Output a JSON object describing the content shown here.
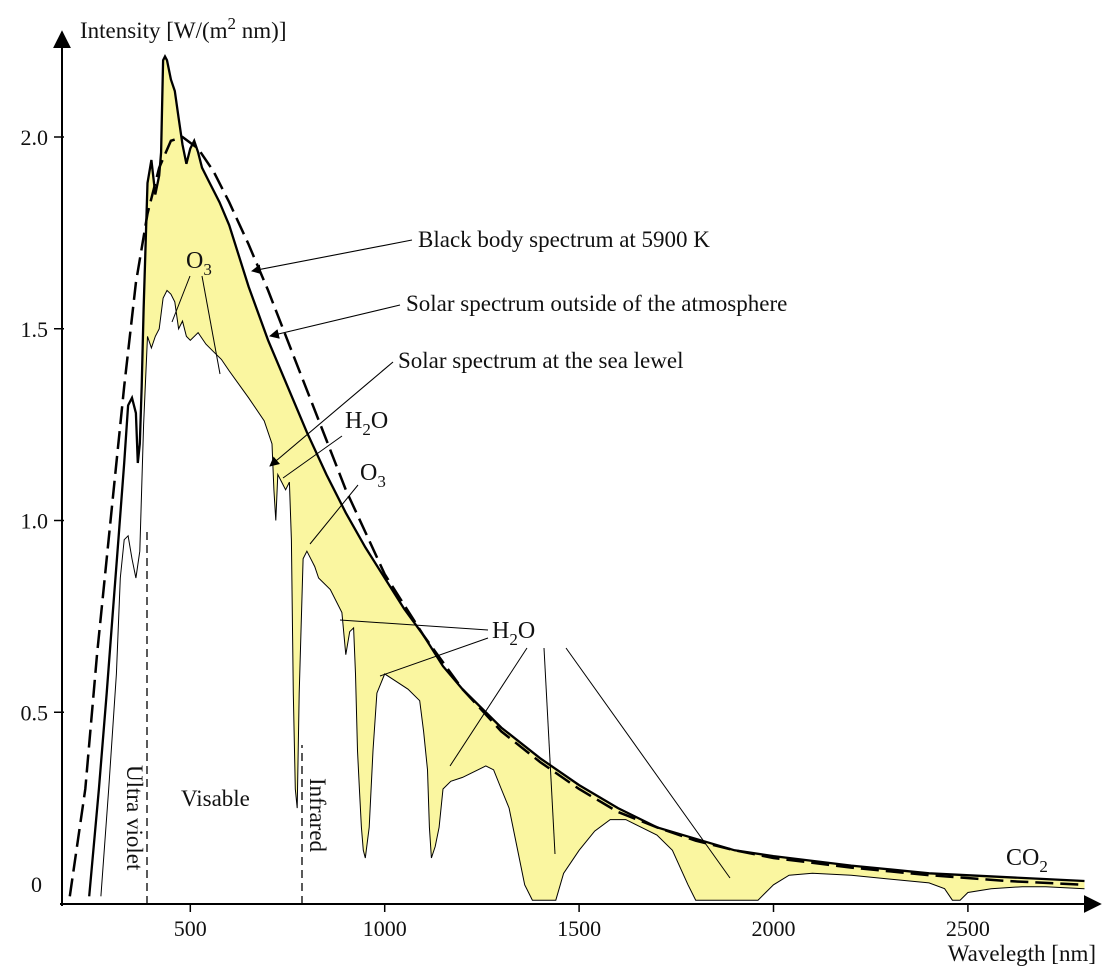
{
  "chart_data": {
    "type": "line",
    "ylabel_main": "Intensity [W/(m",
    "ylabel_sup": "2",
    "ylabel_rest": " nm)]",
    "xlabel": "Wavelegth [nm]",
    "xlim": [
      170,
      2800
    ],
    "ylim": [
      0,
      2.2
    ],
    "x_ticks": [
      500,
      1000,
      1500,
      2000,
      2500
    ],
    "y_ticks": [
      0,
      0.5,
      1.0,
      1.5,
      2.0
    ],
    "x_tick_labels": [
      "500",
      "1000",
      "1500",
      "2000",
      "2500"
    ],
    "y_tick_labels": [
      "0",
      "0.5",
      "1.0",
      "1.5",
      "2.0"
    ],
    "region_labels": {
      "uv": "Ultra violet",
      "visible": "Visable",
      "infrared": "Infrared"
    },
    "annotations": {
      "blackbody": "Black body spectrum at 5900 K",
      "outside": "Solar spectrum outside of the atmosphere",
      "sealevel": "Solar spectrum at the sea lewel",
      "o3_main": "O",
      "o3_sub": "3",
      "h2o_h": "H",
      "h2o_sub": "2",
      "h2o_o": "O",
      "co2_main": "CO",
      "co2_sub": "2"
    },
    "colors": {
      "fill": "#faf6a0",
      "line": "#000000"
    },
    "series": [
      {
        "name": "Black body spectrum at 5900 K",
        "style": "dashed",
        "points": [
          [
            190,
            0.02
          ],
          [
            230,
            0.3
          ],
          [
            260,
            0.65
          ],
          [
            300,
            1.05
          ],
          [
            330,
            1.35
          ],
          [
            360,
            1.62
          ],
          [
            390,
            1.8
          ],
          [
            420,
            1.92
          ],
          [
            450,
            1.99
          ],
          [
            480,
            2.0
          ],
          [
            520,
            1.97
          ],
          [
            560,
            1.91
          ],
          [
            600,
            1.83
          ],
          [
            650,
            1.72
          ],
          [
            700,
            1.6
          ],
          [
            750,
            1.47
          ],
          [
            800,
            1.34
          ],
          [
            850,
            1.21
          ],
          [
            900,
            1.08
          ],
          [
            950,
            0.97
          ],
          [
            1000,
            0.86
          ],
          [
            1100,
            0.7
          ],
          [
            1200,
            0.56
          ],
          [
            1300,
            0.45
          ],
          [
            1400,
            0.37
          ],
          [
            1500,
            0.3
          ],
          [
            1600,
            0.24
          ],
          [
            1700,
            0.2
          ],
          [
            1800,
            0.165
          ],
          [
            1900,
            0.14
          ],
          [
            2000,
            0.12
          ],
          [
            2200,
            0.095
          ],
          [
            2400,
            0.075
          ],
          [
            2600,
            0.06
          ],
          [
            2800,
            0.05
          ]
        ]
      },
      {
        "name": "Solar spectrum outside of the atmosphere",
        "style": "solid",
        "points": [
          [
            240,
            0.02
          ],
          [
            265,
            0.3
          ],
          [
            285,
            0.55
          ],
          [
            300,
            0.75
          ],
          [
            315,
            0.95
          ],
          [
            330,
            1.15
          ],
          [
            340,
            1.3
          ],
          [
            350,
            1.32
          ],
          [
            360,
            1.28
          ],
          [
            365,
            1.15
          ],
          [
            370,
            1.2
          ],
          [
            375,
            1.35
          ],
          [
            380,
            1.55
          ],
          [
            390,
            1.88
          ],
          [
            400,
            1.94
          ],
          [
            410,
            1.85
          ],
          [
            420,
            1.9
          ],
          [
            425,
            1.96
          ],
          [
            430,
            2.2
          ],
          [
            435,
            2.21
          ],
          [
            440,
            2.2
          ],
          [
            450,
            2.15
          ],
          [
            460,
            2.12
          ],
          [
            470,
            2.05
          ],
          [
            480,
            1.98
          ],
          [
            490,
            1.93
          ],
          [
            500,
            1.97
          ],
          [
            510,
            1.99
          ],
          [
            520,
            1.96
          ],
          [
            530,
            1.92
          ],
          [
            550,
            1.88
          ],
          [
            575,
            1.83
          ],
          [
            600,
            1.77
          ],
          [
            650,
            1.61
          ],
          [
            700,
            1.47
          ],
          [
            750,
            1.35
          ],
          [
            800,
            1.23
          ],
          [
            850,
            1.12
          ],
          [
            900,
            1.02
          ],
          [
            950,
            0.93
          ],
          [
            1000,
            0.85
          ],
          [
            1050,
            0.77
          ],
          [
            1100,
            0.7
          ],
          [
            1150,
            0.62
          ],
          [
            1200,
            0.56
          ],
          [
            1300,
            0.46
          ],
          [
            1400,
            0.38
          ],
          [
            1500,
            0.31
          ],
          [
            1600,
            0.25
          ],
          [
            1700,
            0.2
          ],
          [
            1800,
            0.17
          ],
          [
            1900,
            0.14
          ],
          [
            2000,
            0.125
          ],
          [
            2200,
            0.1
          ],
          [
            2400,
            0.08
          ],
          [
            2600,
            0.07
          ],
          [
            2800,
            0.06
          ]
        ]
      },
      {
        "name": "Solar spectrum at the sea lewel",
        "style": "fill",
        "points": [
          [
            270,
            0.02
          ],
          [
            290,
            0.3
          ],
          [
            310,
            0.6
          ],
          [
            320,
            0.85
          ],
          [
            330,
            0.95
          ],
          [
            340,
            0.96
          ],
          [
            350,
            0.9
          ],
          [
            360,
            0.85
          ],
          [
            370,
            0.92
          ],
          [
            380,
            1.25
          ],
          [
            390,
            1.48
          ],
          [
            400,
            1.45
          ],
          [
            410,
            1.48
          ],
          [
            420,
            1.5
          ],
          [
            430,
            1.58
          ],
          [
            440,
            1.6
          ],
          [
            450,
            1.59
          ],
          [
            460,
            1.57
          ],
          [
            470,
            1.5
          ],
          [
            480,
            1.52
          ],
          [
            490,
            1.48
          ],
          [
            500,
            1.47
          ],
          [
            520,
            1.49
          ],
          [
            540,
            1.46
          ],
          [
            560,
            1.44
          ],
          [
            580,
            1.42
          ],
          [
            600,
            1.39
          ],
          [
            650,
            1.32
          ],
          [
            690,
            1.26
          ],
          [
            710,
            1.2
          ],
          [
            715,
            1.08
          ],
          [
            720,
            1.0
          ],
          [
            725,
            1.12
          ],
          [
            735,
            1.1
          ],
          [
            745,
            1.08
          ],
          [
            755,
            1.1
          ],
          [
            760,
            0.95
          ],
          [
            765,
            0.55
          ],
          [
            770,
            0.3
          ],
          [
            775,
            0.25
          ],
          [
            780,
            0.55
          ],
          [
            790,
            0.9
          ],
          [
            800,
            0.92
          ],
          [
            810,
            0.9
          ],
          [
            820,
            0.88
          ],
          [
            830,
            0.85
          ],
          [
            860,
            0.82
          ],
          [
            890,
            0.76
          ],
          [
            900,
            0.65
          ],
          [
            910,
            0.71
          ],
          [
            920,
            0.72
          ],
          [
            925,
            0.6
          ],
          [
            930,
            0.4
          ],
          [
            935,
            0.3
          ],
          [
            940,
            0.2
          ],
          [
            945,
            0.14
          ],
          [
            950,
            0.12
          ],
          [
            960,
            0.2
          ],
          [
            970,
            0.4
          ],
          [
            980,
            0.55
          ],
          [
            1000,
            0.6
          ],
          [
            1030,
            0.58
          ],
          [
            1060,
            0.56
          ],
          [
            1090,
            0.53
          ],
          [
            1100,
            0.45
          ],
          [
            1110,
            0.35
          ],
          [
            1115,
            0.2
          ],
          [
            1120,
            0.12
          ],
          [
            1130,
            0.15
          ],
          [
            1140,
            0.2
          ],
          [
            1150,
            0.3
          ],
          [
            1170,
            0.32
          ],
          [
            1200,
            0.33
          ],
          [
            1240,
            0.35
          ],
          [
            1260,
            0.36
          ],
          [
            1280,
            0.35
          ],
          [
            1300,
            0.3
          ],
          [
            1320,
            0.25
          ],
          [
            1340,
            0.15
          ],
          [
            1360,
            0.05
          ],
          [
            1380,
            0.01
          ],
          [
            1440,
            0.01
          ],
          [
            1460,
            0.08
          ],
          [
            1500,
            0.14
          ],
          [
            1540,
            0.19
          ],
          [
            1580,
            0.22
          ],
          [
            1620,
            0.22
          ],
          [
            1660,
            0.2
          ],
          [
            1700,
            0.18
          ],
          [
            1740,
            0.14
          ],
          [
            1780,
            0.05
          ],
          [
            1800,
            0.01
          ],
          [
            1960,
            0.01
          ],
          [
            1980,
            0.03
          ],
          [
            2000,
            0.05
          ],
          [
            2040,
            0.075
          ],
          [
            2100,
            0.08
          ],
          [
            2200,
            0.075
          ],
          [
            2300,
            0.065
          ],
          [
            2400,
            0.055
          ],
          [
            2440,
            0.04
          ],
          [
            2460,
            0.01
          ],
          [
            2480,
            0.01
          ],
          [
            2500,
            0.03
          ],
          [
            2560,
            0.04
          ],
          [
            2640,
            0.045
          ],
          [
            2700,
            0.045
          ],
          [
            2800,
            0.04
          ]
        ]
      }
    ]
  }
}
